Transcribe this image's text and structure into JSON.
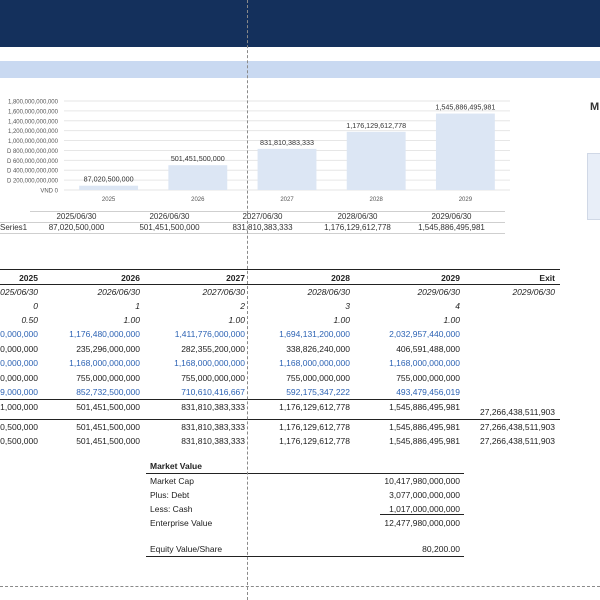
{
  "chart_data": {
    "type": "bar",
    "categories": [
      "2025",
      "2026",
      "2027",
      "2028",
      "2029"
    ],
    "values": [
      87020500000,
      501451500000,
      831810383333,
      1176129612778,
      1545886495981
    ],
    "value_labels": [
      "87,020,500,000",
      "501,451,500,000",
      "831,810,383,333",
      "1,176,129,612,778",
      "1,545,886,495,981"
    ],
    "yticks": [
      "VND 0",
      "D 200,000,000,000",
      "D 400,000,000,000",
      "D 600,000,000,000",
      "D 800,000,000,000",
      "1,000,000,000,000",
      "1,200,000,000,000",
      "1,400,000,000,000",
      "1,600,000,000,000",
      "1,800,000,000,000"
    ],
    "ylim": [
      0,
      1800000000000
    ],
    "grid": true,
    "bar_color": "#dce6f4"
  },
  "chart_table": {
    "dates": [
      "2025/06/30",
      "2026/06/30",
      "2027/06/30",
      "2028/06/30",
      "2029/06/30"
    ],
    "series_label": "Series1",
    "values": [
      "87,020,500,000",
      "501,451,500,000",
      "831,810,383,333",
      "1,176,129,612,778",
      "1,545,886,495,981"
    ]
  },
  "side_panel": {
    "title": "M"
  },
  "model": {
    "years": [
      "2025",
      "2026",
      "2027",
      "2028",
      "2029",
      "Exit"
    ],
    "dates": [
      "2025/06/30",
      "2026/06/30",
      "2027/06/30",
      "2028/06/30",
      "2029/06/30",
      "2029/06/30"
    ],
    "period": [
      "0",
      "1",
      "2",
      "3",
      "4"
    ],
    "fraction": [
      "0.50",
      "1.00",
      "1.00",
      "1.00",
      "1.00"
    ],
    "rows": [
      {
        "style": "blue",
        "values": [
          "00,000,000",
          "1,176,480,000,000",
          "1,411,776,000,000",
          "1,694,131,200,000",
          "2,032,957,440,000"
        ]
      },
      {
        "style": "plain",
        "values": [
          "00,000,000",
          "235,296,000,000",
          "282,355,200,000",
          "338,826,240,000",
          "406,591,488,000"
        ]
      },
      {
        "style": "blue",
        "values": [
          "00,000,000",
          "1,168,000,000,000",
          "1,168,000,000,000",
          "1,168,000,000,000",
          "1,168,000,000,000"
        ]
      },
      {
        "style": "plain",
        "values": [
          "00,000,000",
          "755,000,000,000",
          "755,000,000,000",
          "755,000,000,000",
          "755,000,000,000"
        ]
      },
      {
        "style": "blue",
        "values": [
          "9,000,000",
          "852,732,500,000",
          "710,610,416,667",
          "592,175,347,222",
          "493,479,456,019"
        ]
      },
      {
        "style": "plain",
        "values": [
          "1,000,000",
          "501,451,500,000",
          "831,810,383,333",
          "1,176,129,612,778",
          "1,545,886,495,981"
        ]
      }
    ],
    "exit_value": "27,266,438,511,903",
    "total_rows": [
      [
        "0,500,000",
        "501,451,500,000",
        "831,810,383,333",
        "1,176,129,612,778",
        "1,545,886,495,981",
        "27,266,438,511,903"
      ],
      [
        "0,500,000",
        "501,451,500,000",
        "831,810,383,333",
        "1,176,129,612,778",
        "1,545,886,495,981",
        "27,266,438,511,903"
      ]
    ]
  },
  "market_value": {
    "title": "Market Value",
    "items": [
      {
        "label": "Market Cap",
        "value": "10,417,980,000,000"
      },
      {
        "label": "Plus: Debt",
        "value": "3,077,000,000,000"
      },
      {
        "label": "Less: Cash",
        "value": "1,017,000,000,000"
      },
      {
        "label": "Enterprise Value",
        "value": "12,477,980,000,000"
      }
    ],
    "equity_label": "Equity Value/Share",
    "equity_value": "80,200.00"
  }
}
